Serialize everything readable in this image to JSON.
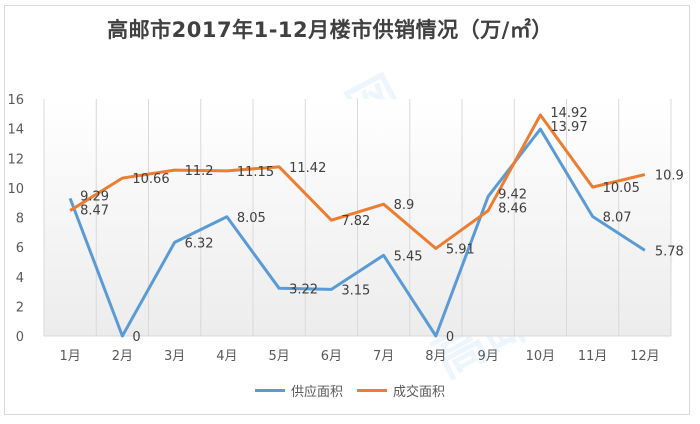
{
  "chart_data": {
    "type": "line",
    "title": "高邮市2017年1-12月楼市供销情况（万/㎡）",
    "categories": [
      "1月",
      "2月",
      "3月",
      "4月",
      "5月",
      "6月",
      "7月",
      "8月",
      "9月",
      "10月",
      "11月",
      "12月"
    ],
    "series": [
      {
        "name": "供应面积",
        "color": "#5b9bd5",
        "values": [
          9.29,
          0,
          6.32,
          8.05,
          3.22,
          3.15,
          5.45,
          0,
          9.42,
          13.97,
          8.07,
          5.78
        ]
      },
      {
        "name": "成交面积",
        "color": "#ed7d31",
        "values": [
          8.47,
          10.66,
          11.2,
          11.15,
          11.42,
          7.82,
          8.9,
          5.91,
          8.46,
          14.92,
          10.05,
          10.9
        ]
      }
    ],
    "xlabel": "",
    "ylabel": "",
    "ylim": [
      0,
      16
    ],
    "yticks": [
      0,
      2,
      4,
      6,
      8,
      10,
      12,
      14,
      16
    ],
    "grid": "vertical",
    "legend_position": "bottom",
    "data_labels": true
  },
  "watermark": {
    "text": "高邮房产网"
  }
}
